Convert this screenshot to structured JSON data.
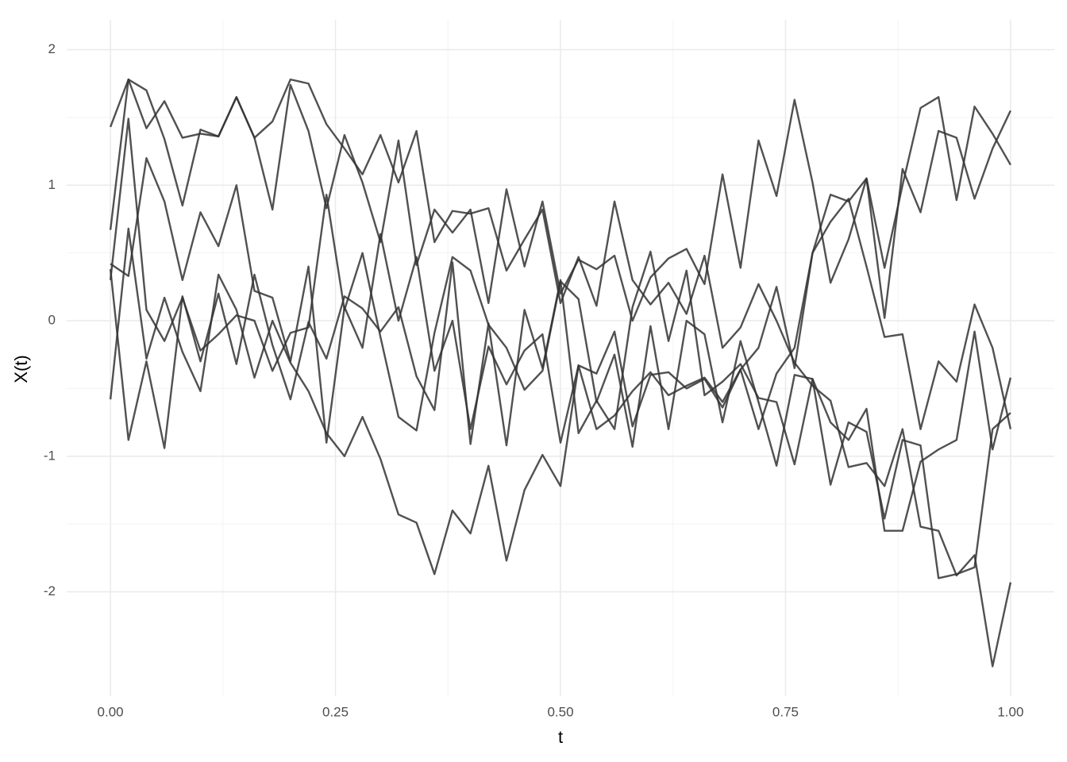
{
  "chart_data": {
    "type": "line",
    "xlabel": "t",
    "ylabel": "X(t)",
    "x": [
      0,
      0.02,
      0.04,
      0.06,
      0.08,
      0.1,
      0.12,
      0.14,
      0.16,
      0.18,
      0.2,
      0.22,
      0.24,
      0.26,
      0.28,
      0.3,
      0.32,
      0.34,
      0.36,
      0.38,
      0.4,
      0.42,
      0.44,
      0.46,
      0.48,
      0.5,
      0.52,
      0.54,
      0.56,
      0.58,
      0.6,
      0.62,
      0.64,
      0.66,
      0.68,
      0.7,
      0.72,
      0.74,
      0.76,
      0.78,
      0.8,
      0.82,
      0.84,
      0.86,
      0.88,
      0.9,
      0.92,
      0.94,
      0.96,
      0.98,
      1
    ],
    "series": [
      {
        "color": "#333333",
        "values": [
          1.43,
          1.78,
          1.42,
          1.62,
          1.35,
          1.38,
          1.36,
          1.65,
          1.35,
          1.47,
          1.78,
          1.75,
          1.45,
          1.27,
          1.08,
          1.37,
          1.02,
          1.4,
          0.58,
          0.81,
          0.79,
          0.83,
          0.37,
          0.6,
          0.82,
          0.13,
          0.47,
          0.11,
          0.88,
          0.3,
          0.12,
          0.28,
          0.05,
          0.48,
          -0.2,
          -0.05,
          0.27,
          0.0,
          -0.31,
          -0.48,
          -0.59,
          -1.08,
          -1.05,
          -1.22,
          -0.8,
          -1.52,
          -1.55,
          -1.88,
          -1.73,
          -2.55,
          -1.93
        ]
      },
      {
        "color": "#333333",
        "values": [
          0.67,
          1.78,
          1.7,
          1.34,
          0.85,
          1.41,
          1.36,
          1.65,
          1.35,
          0.82,
          1.74,
          1.4,
          0.83,
          1.37,
          1.02,
          0.58,
          1.33,
          0.41,
          0.82,
          0.65,
          0.82,
          0.13,
          0.97,
          0.4,
          0.88,
          0.2,
          0.45,
          0.38,
          0.48,
          0.0,
          0.32,
          0.46,
          0.53,
          0.27,
          1.08,
          0.39,
          1.33,
          0.92,
          1.63,
          1.02,
          0.28,
          0.6,
          1.05,
          0.39,
          1.0,
          1.57,
          1.65,
          0.89,
          1.58,
          1.38,
          1.15
        ]
      },
      {
        "color": "#333333",
        "values": [
          0.42,
          0.33,
          1.2,
          0.88,
          0.3,
          0.8,
          0.55,
          1.0,
          0.22,
          0.17,
          -0.3,
          0.4,
          -0.9,
          0.1,
          -0.2,
          0.64,
          0.0,
          0.47,
          -0.37,
          0.0,
          -0.8,
          -0.19,
          -0.47,
          -0.22,
          -0.1,
          -0.9,
          -0.33,
          -0.39,
          -0.08,
          -0.78,
          -0.4,
          -0.38,
          -0.5,
          -0.43,
          -0.64,
          -0.36,
          -0.8,
          -0.39,
          -0.2,
          0.5,
          0.73,
          0.9,
          0.4,
          -0.12,
          -0.1,
          -0.8,
          -0.3,
          -0.45,
          0.12,
          -0.2,
          -0.8
        ]
      },
      {
        "color": "#333333",
        "values": [
          -0.58,
          0.68,
          -0.28,
          0.17,
          -0.23,
          -0.52,
          0.34,
          0.08,
          -0.42,
          0.0,
          -0.31,
          -0.52,
          -0.83,
          -1.0,
          -0.71,
          -1.02,
          -1.43,
          -1.49,
          -1.87,
          -1.4,
          -1.57,
          -1.07,
          -1.77,
          -1.25,
          -0.99,
          -1.22,
          -0.33,
          -0.8,
          -0.7,
          -0.52,
          -0.38,
          -0.55,
          -0.48,
          -0.42,
          -0.6,
          -0.36,
          -0.2,
          0.25,
          -0.35,
          0.5,
          0.93,
          0.88,
          1.05,
          0.02,
          1.12,
          0.8,
          1.4,
          1.35,
          0.9,
          1.27,
          1.55
        ]
      },
      {
        "color": "#333333",
        "values": [
          0.38,
          -0.88,
          -0.3,
          -0.94,
          0.18,
          -0.3,
          0.2,
          -0.32,
          0.34,
          -0.18,
          -0.58,
          -0.01,
          -0.28,
          0.18,
          0.09,
          -0.08,
          0.1,
          -0.41,
          -0.66,
          0.43,
          -0.91,
          -0.02,
          -0.92,
          0.08,
          -0.35,
          0.3,
          -0.83,
          -0.59,
          -0.8,
          0.1,
          0.51,
          -0.15,
          0.37,
          -0.55,
          -0.45,
          -0.32,
          -0.57,
          -0.6,
          -1.06,
          -0.43,
          -1.21,
          -0.75,
          -0.82,
          -1.46,
          -0.88,
          -0.92,
          -1.9,
          -1.87,
          -1.82,
          -0.8,
          -0.68
        ]
      },
      {
        "color": "#333333",
        "values": [
          0.3,
          1.49,
          0.08,
          -0.15,
          0.17,
          -0.22,
          -0.1,
          0.04,
          0.0,
          -0.37,
          -0.09,
          -0.05,
          0.93,
          0.08,
          0.5,
          -0.12,
          -0.71,
          -0.81,
          -0.09,
          0.47,
          0.37,
          -0.03,
          -0.2,
          -0.51,
          -0.37,
          0.29,
          0.16,
          -0.6,
          -0.25,
          -0.93,
          -0.04,
          -0.8,
          0.0,
          -0.1,
          -0.75,
          -0.15,
          -0.6,
          -1.07,
          -0.4,
          -0.43,
          -0.75,
          -0.88,
          -0.65,
          -1.55,
          -1.55,
          -1.04,
          -0.95,
          -0.88,
          -0.08,
          -0.95,
          -0.42
        ]
      }
    ],
    "xlim": [
      -0.0486,
      1.0486
    ],
    "xticks": [
      {
        "value": 0,
        "label": "0.00"
      },
      {
        "value": 0.25,
        "label": "0.25"
      },
      {
        "value": 0.5,
        "label": "0.50"
      },
      {
        "value": 0.75,
        "label": "0.75"
      },
      {
        "value": 1,
        "label": "1.00"
      }
    ],
    "ylim": [
      -2.77,
      2.22
    ],
    "yticks": [
      -2,
      -1,
      0,
      1,
      2
    ],
    "grid": true
  }
}
